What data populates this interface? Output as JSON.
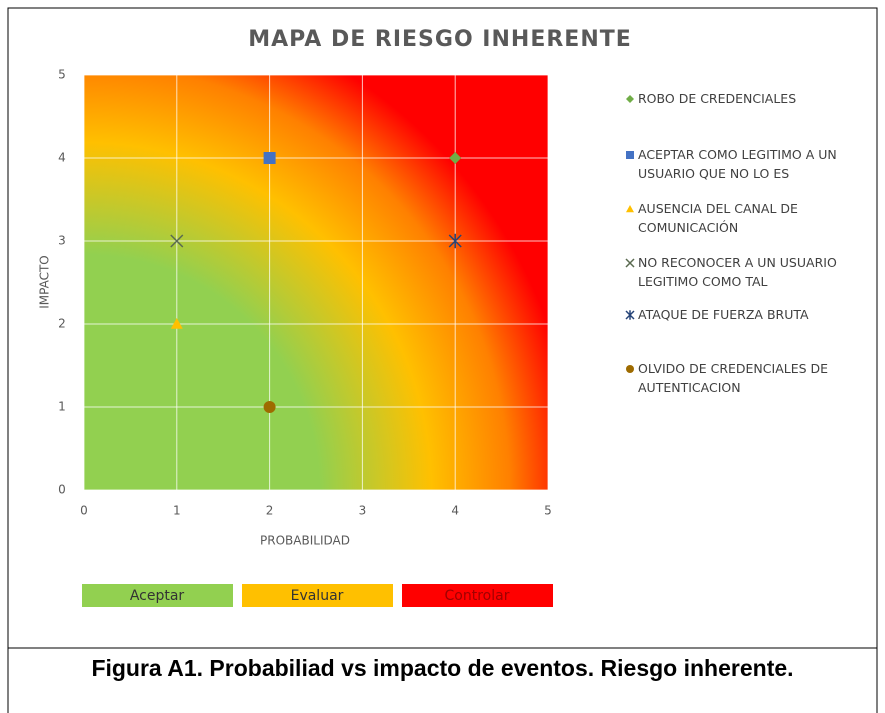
{
  "chart_data": {
    "type": "scatter",
    "title": "MAPA DE RIESGO INHERENTE",
    "x_label": "PROBABILIDAD",
    "y_label": "IMPACTO",
    "xlim": [
      0,
      5
    ],
    "xticks": [
      0,
      1,
      2,
      3,
      4,
      5
    ],
    "ylim": [
      0,
      5
    ],
    "yticks": [
      0,
      1,
      2,
      3,
      4,
      5
    ],
    "grid": true,
    "legend": "right",
    "series": [
      {
        "name": "ROBO DE CREDENCIALES",
        "color": "#70ad47",
        "marker": "diamond",
        "x": [
          4
        ],
        "values": [
          4
        ]
      },
      {
        "name": "ACEPTAR COMO LEGITIMO A UN USUARIO QUE NO LO ES",
        "color": "#4472c4",
        "marker": "square",
        "x": [
          2
        ],
        "values": [
          4
        ]
      },
      {
        "name": "AUSENCIA DEL CANAL DE COMUNICACIÓN",
        "color": "#ffc000",
        "marker": "triangle",
        "x": [
          1
        ],
        "values": [
          2
        ]
      },
      {
        "name": "NO RECONOCER A UN USUARIO LEGITIMO COMO TAL",
        "color": "#5a6a50",
        "marker": "x",
        "x": [
          1
        ],
        "values": [
          3
        ]
      },
      {
        "name": "ATAQUE DE FUERZA BRUTA",
        "color": "#264478",
        "marker": "star",
        "x": [
          4
        ],
        "values": [
          3
        ]
      },
      {
        "name": "OLVIDO DE CREDENCIALES DE AUTENTICACION",
        "color": "#9e6b00",
        "marker": "circle",
        "x": [
          2
        ],
        "values": [
          1
        ]
      }
    ],
    "zones": [
      {
        "label": "Aceptar",
        "color": "#92d050"
      },
      {
        "label": "Evaluar",
        "color": "#ffc000"
      },
      {
        "label": "Controlar",
        "color": "#ff0000"
      }
    ]
  },
  "caption": "Figura A1. Probabiliad vs impacto de eventos. Riesgo inherente."
}
